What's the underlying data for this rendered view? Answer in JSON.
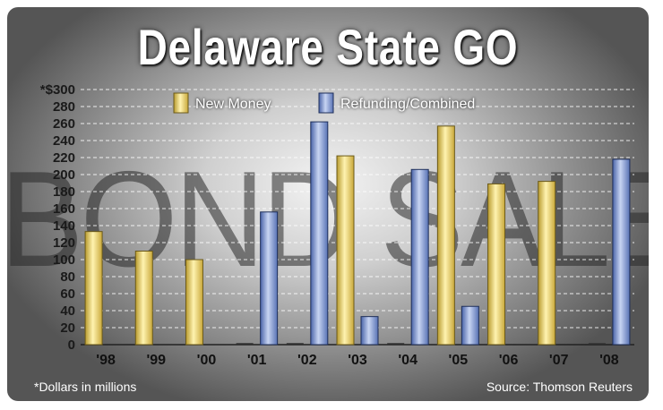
{
  "chart_data": {
    "type": "bar",
    "title": "Delaware State GO",
    "watermark": "BOND SALES",
    "categories": [
      "'98",
      "'99",
      "'00",
      "'01",
      "'02",
      "'03",
      "'04",
      "'05",
      "'06",
      "'07",
      "'08"
    ],
    "series": [
      {
        "name": "New Money",
        "color": "#e9cf6a",
        "values": [
          133,
          110,
          100,
          0,
          0,
          222,
          0,
          257,
          189,
          192,
          0
        ]
      },
      {
        "name": "Refunding/Combined",
        "color": "#7d96cc",
        "values": [
          0,
          0,
          0,
          156,
          262,
          33,
          206,
          45,
          0,
          0,
          218
        ]
      }
    ],
    "ylim": [
      0,
      300
    ],
    "yticks": [
      "0",
      "20",
      "40",
      "60",
      "80",
      "100",
      "120",
      "140",
      "160",
      "180",
      "200",
      "220",
      "240",
      "260",
      "280",
      "*$300"
    ],
    "footnote": "*Dollars in millions",
    "source": "Source: Thomson Reuters"
  }
}
